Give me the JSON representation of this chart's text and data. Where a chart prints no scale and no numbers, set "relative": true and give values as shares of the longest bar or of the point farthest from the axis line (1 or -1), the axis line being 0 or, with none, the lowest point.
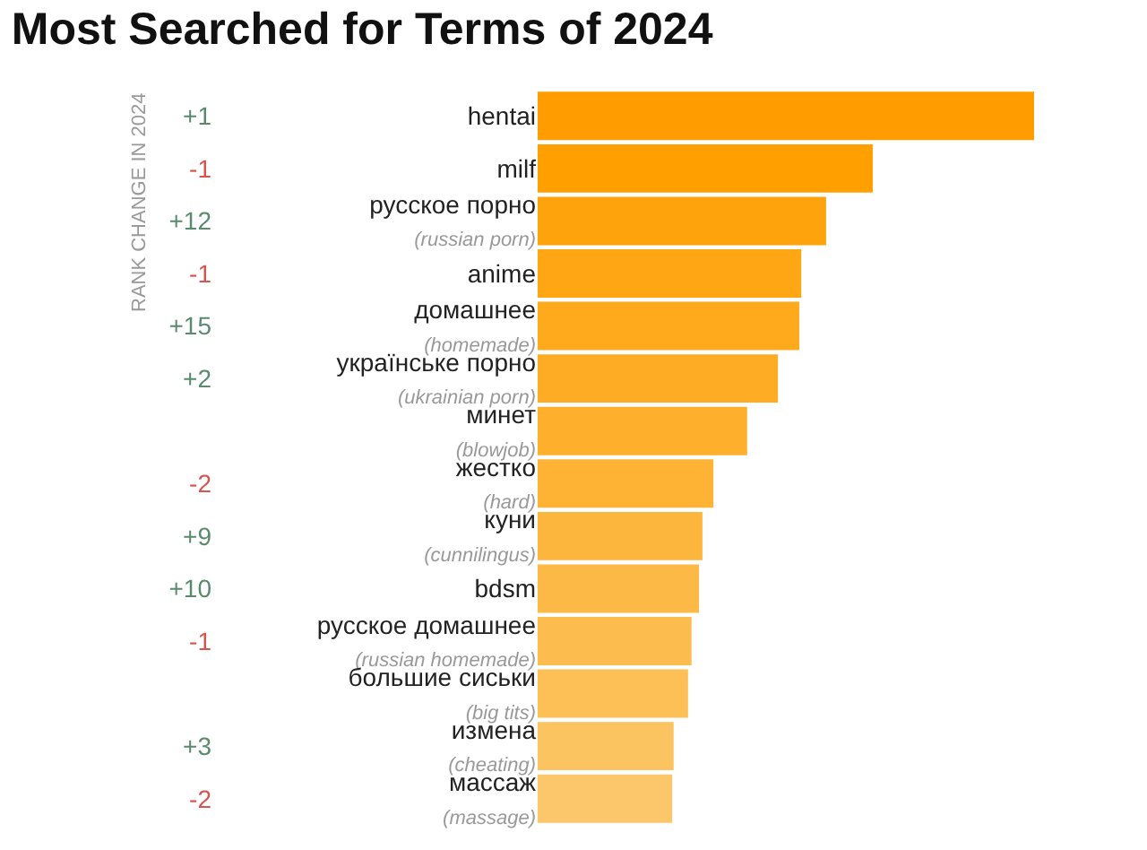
{
  "chart_data": {
    "type": "bar",
    "orientation": "horizontal",
    "relative": true,
    "title": "Most Searched for Terms of 2024",
    "categories": [
      "hentai",
      "milf",
      "русское порно\n(russian porn)",
      "anime",
      "домашнее\n(homemade)",
      "українське порно\n(ukrainian porn)",
      "минет\n(blowjob)",
      "жестко\n(hard)",
      "куни\n(cunnilingus)",
      "bdsm",
      "русское домашнее\n(russian homemade)",
      "большие сиськи\n(big tits)",
      "измена\n(cheating)",
      "массаж\n(massage)"
    ],
    "y2_categories": [
      "+1",
      "-1",
      "+12",
      "-1",
      "+15",
      "+2",
      null,
      "-2",
      "+9",
      "+10",
      "-1",
      null,
      "+3",
      "-2"
    ],
    "values": [
      1,
      0.675,
      0.581,
      0.531,
      0.527,
      0.484,
      0.422,
      0.354,
      0.332,
      0.325,
      0.31,
      0.303,
      0.274,
      0.271
    ],
    "colors": [
      "#ff9c00",
      "#ffa000",
      "#ffa30c",
      "#ffa614",
      "#ffa91c",
      "#feac24",
      "#feb02c",
      "#feb334",
      "#fdb63d",
      "#fdb945",
      "#fdbc4e",
      "#fcc057",
      "#fcc361",
      "#fcc66b"
    ],
    "annotations": [
      "RANK CHANGE IN 2024"
    ]
  }
}
